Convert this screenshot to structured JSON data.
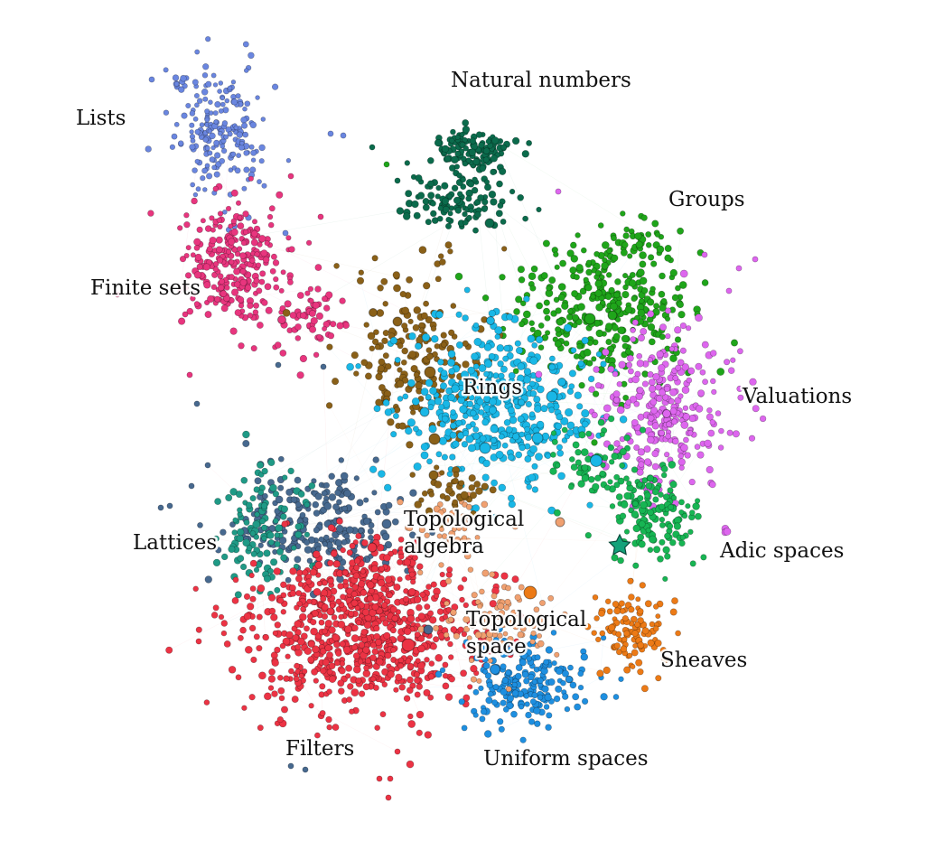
{
  "diagram": {
    "type": "force-directed dependency graph",
    "clusters": [
      {
        "label": "Lists",
        "color": "#6a86e0"
      },
      {
        "label": "Natural numbers",
        "color": "#0b6b4c"
      },
      {
        "label": "Groups",
        "color": "#1fa51a"
      },
      {
        "label": "Finite sets",
        "color": "#e8357e"
      },
      {
        "label": "Rings",
        "color": "#19b7e6"
      },
      {
        "label": "Valuations",
        "color": "#dd66ee"
      },
      {
        "label": "Lattices",
        "color": "#47698f"
      },
      {
        "label": "Topological\nalgebra",
        "color": "#8a6018"
      },
      {
        "label": "Adic spaces",
        "color": "#17b553"
      },
      {
        "label": "Topological\nspace",
        "color": "#f0a070"
      },
      {
        "label": "Sheaves",
        "color": "#ec7a16"
      },
      {
        "label": "Filters",
        "color": "#ec3344"
      },
      {
        "label": "Uniform spaces",
        "color": "#1e8fe0"
      }
    ],
    "extra_colors": {
      "teal": "#1f9a86",
      "highlight_star": "#14a27a"
    },
    "highlight_marker": "star-icon"
  }
}
